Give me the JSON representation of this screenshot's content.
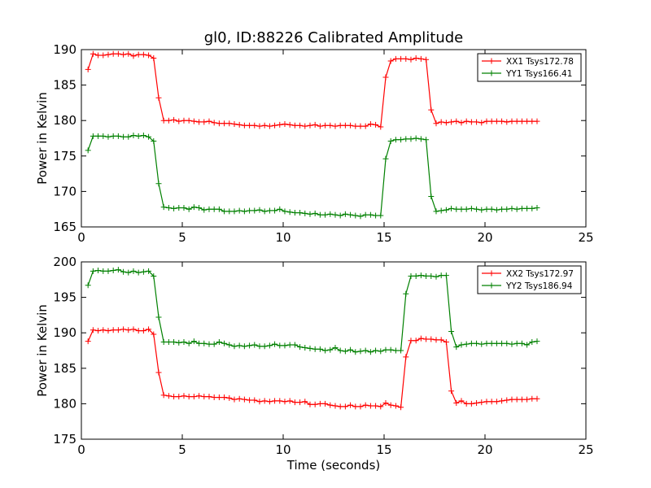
{
  "chart_data": {
    "title": "gl0, ID:88226 Calibrated Amplitude",
    "panels": [
      {
        "type": "line",
        "xlim": [
          0,
          25
        ],
        "ylim": [
          165,
          190
        ],
        "xticks": [
          0,
          5,
          10,
          15,
          20,
          25
        ],
        "yticks": [
          165,
          170,
          175,
          180,
          185,
          190
        ],
        "ylabel": "Power in Kelvin",
        "xlabel": "",
        "legend": "top-right",
        "series": [
          {
            "name": "XX1 Tsys172.78",
            "color": "#ff0000",
            "x": [
              0.33,
              0.58,
              0.83,
              1.08,
              1.33,
              1.58,
              1.83,
              2.08,
              2.33,
              2.58,
              2.83,
              3.08,
              3.33,
              3.58,
              3.83,
              4.08,
              4.33,
              4.58,
              4.83,
              5.08,
              5.33,
              5.58,
              5.83,
              6.08,
              6.33,
              6.58,
              6.83,
              7.08,
              7.33,
              7.58,
              7.83,
              8.08,
              8.33,
              8.58,
              8.83,
              9.08,
              9.33,
              9.58,
              9.83,
              10.08,
              10.33,
              10.58,
              10.83,
              11.08,
              11.33,
              11.58,
              11.83,
              12.08,
              12.33,
              12.58,
              12.83,
              13.08,
              13.33,
              13.58,
              13.83,
              14.08,
              14.33,
              14.58,
              14.83,
              15.08,
              15.33,
              15.58,
              15.83,
              16.08,
              16.33,
              16.58,
              16.83,
              17.08,
              17.33,
              17.58,
              17.83,
              18.08,
              18.33,
              18.58,
              18.83,
              19.08,
              19.33,
              19.58,
              19.83,
              20.08,
              20.33,
              20.58,
              20.83,
              21.08,
              21.33,
              21.58,
              21.83,
              22.08,
              22.33,
              22.58
            ],
            "y": [
              187.2,
              189.4,
              189.2,
              189.2,
              189.3,
              189.4,
              189.4,
              189.3,
              189.4,
              189.1,
              189.3,
              189.3,
              189.2,
              188.8,
              183.2,
              180.0,
              180.0,
              180.1,
              179.9,
              180.0,
              180.0,
              179.9,
              179.8,
              179.8,
              179.9,
              179.7,
              179.6,
              179.6,
              179.6,
              179.5,
              179.4,
              179.3,
              179.3,
              179.3,
              179.2,
              179.3,
              179.2,
              179.3,
              179.4,
              179.5,
              179.4,
              179.3,
              179.3,
              179.2,
              179.3,
              179.4,
              179.2,
              179.3,
              179.3,
              179.2,
              179.3,
              179.3,
              179.3,
              179.2,
              179.2,
              179.2,
              179.5,
              179.4,
              179.1,
              186.1,
              188.4,
              188.7,
              188.7,
              188.7,
              188.6,
              188.8,
              188.7,
              188.6,
              181.5,
              179.6,
              179.8,
              179.7,
              179.8,
              179.9,
              179.7,
              179.9,
              179.8,
              179.8,
              179.7,
              179.9,
              179.9,
              179.9,
              179.9,
              179.8,
              179.9,
              179.9,
              179.9,
              179.9,
              179.9,
              179.9
            ]
          },
          {
            "name": "YY1 Tsys166.41",
            "color": "#008000",
            "x": [
              0.33,
              0.58,
              0.83,
              1.08,
              1.33,
              1.58,
              1.83,
              2.08,
              2.33,
              2.58,
              2.83,
              3.08,
              3.33,
              3.58,
              3.83,
              4.08,
              4.33,
              4.58,
              4.83,
              5.08,
              5.33,
              5.58,
              5.83,
              6.08,
              6.33,
              6.58,
              6.83,
              7.08,
              7.33,
              7.58,
              7.83,
              8.08,
              8.33,
              8.58,
              8.83,
              9.08,
              9.33,
              9.58,
              9.83,
              10.08,
              10.33,
              10.58,
              10.83,
              11.08,
              11.33,
              11.58,
              11.83,
              12.08,
              12.33,
              12.58,
              12.83,
              13.08,
              13.33,
              13.58,
              13.83,
              14.08,
              14.33,
              14.58,
              14.83,
              15.08,
              15.33,
              15.58,
              15.83,
              16.08,
              16.33,
              16.58,
              16.83,
              17.08,
              17.33,
              17.58,
              17.83,
              18.08,
              18.33,
              18.58,
              18.83,
              19.08,
              19.33,
              19.58,
              19.83,
              20.08,
              20.33,
              20.58,
              20.83,
              21.08,
              21.33,
              21.58,
              21.83,
              22.08,
              22.33,
              22.58
            ],
            "y": [
              175.8,
              177.8,
              177.8,
              177.8,
              177.7,
              177.8,
              177.8,
              177.7,
              177.7,
              177.9,
              177.8,
              177.9,
              177.7,
              177.1,
              171.1,
              167.8,
              167.7,
              167.6,
              167.7,
              167.7,
              167.5,
              167.8,
              167.7,
              167.4,
              167.5,
              167.5,
              167.5,
              167.2,
              167.2,
              167.2,
              167.3,
              167.2,
              167.3,
              167.3,
              167.4,
              167.2,
              167.3,
              167.3,
              167.5,
              167.2,
              167.1,
              167.0,
              167.0,
              166.9,
              166.8,
              166.9,
              166.7,
              166.7,
              166.8,
              166.7,
              166.6,
              166.8,
              166.7,
              166.6,
              166.5,
              166.7,
              166.7,
              166.6,
              166.6,
              174.6,
              177.1,
              177.3,
              177.3,
              177.4,
              177.4,
              177.5,
              177.4,
              177.3,
              169.3,
              167.2,
              167.3,
              167.4,
              167.6,
              167.5,
              167.5,
              167.5,
              167.6,
              167.5,
              167.4,
              167.5,
              167.5,
              167.4,
              167.5,
              167.5,
              167.6,
              167.5,
              167.6,
              167.6,
              167.6,
              167.7
            ]
          }
        ]
      },
      {
        "type": "line",
        "xlim": [
          0,
          25
        ],
        "ylim": [
          175,
          200
        ],
        "xticks": [
          0,
          5,
          10,
          15,
          20,
          25
        ],
        "yticks": [
          175,
          180,
          185,
          190,
          195,
          200
        ],
        "ylabel": "Power in Kelvin",
        "xlabel": "Time (seconds)",
        "legend": "top-right",
        "series": [
          {
            "name": "XX2 Tsys172.97",
            "color": "#ff0000",
            "x": [
              0.33,
              0.58,
              0.83,
              1.08,
              1.33,
              1.58,
              1.83,
              2.08,
              2.33,
              2.58,
              2.83,
              3.08,
              3.33,
              3.58,
              3.83,
              4.08,
              4.33,
              4.58,
              4.83,
              5.08,
              5.33,
              5.58,
              5.83,
              6.08,
              6.33,
              6.58,
              6.83,
              7.08,
              7.33,
              7.58,
              7.83,
              8.08,
              8.33,
              8.58,
              8.83,
              9.08,
              9.33,
              9.58,
              9.83,
              10.08,
              10.33,
              10.58,
              10.83,
              11.08,
              11.33,
              11.58,
              11.83,
              12.08,
              12.33,
              12.58,
              12.83,
              13.08,
              13.33,
              13.58,
              13.83,
              14.08,
              14.33,
              14.58,
              14.83,
              15.08,
              15.33,
              15.58,
              15.83,
              16.08,
              16.33,
              16.58,
              16.83,
              17.08,
              17.33,
              17.58,
              17.83,
              18.08,
              18.33,
              18.58,
              18.83,
              19.08,
              19.33,
              19.58,
              19.83,
              20.08,
              20.33,
              20.58,
              20.83,
              21.08,
              21.33,
              21.58,
              21.83,
              22.08,
              22.33,
              22.58
            ],
            "y": [
              188.8,
              190.4,
              190.3,
              190.4,
              190.3,
              190.4,
              190.4,
              190.5,
              190.4,
              190.5,
              190.3,
              190.3,
              190.5,
              189.8,
              184.4,
              181.2,
              181.1,
              181.0,
              181.0,
              181.1,
              181.0,
              181.0,
              181.1,
              181.0,
              181.0,
              180.9,
              180.9,
              180.9,
              180.8,
              180.6,
              180.7,
              180.6,
              180.5,
              180.5,
              180.3,
              180.4,
              180.3,
              180.4,
              180.4,
              180.3,
              180.4,
              180.2,
              180.2,
              180.3,
              179.9,
              179.9,
              180.0,
              180.0,
              179.8,
              179.7,
              179.6,
              179.6,
              179.8,
              179.6,
              179.6,
              179.8,
              179.7,
              179.7,
              179.6,
              180.1,
              179.8,
              179.7,
              179.5,
              186.6,
              188.9,
              188.9,
              189.2,
              189.1,
              189.1,
              189.0,
              189.0,
              188.7,
              181.8,
              180.1,
              180.4,
              180.0,
              180.0,
              180.1,
              180.2,
              180.3,
              180.3,
              180.3,
              180.4,
              180.5,
              180.6,
              180.6,
              180.6,
              180.6,
              180.7,
              180.7
            ]
          },
          {
            "name": "YY2 Tsys186.94",
            "color": "#008000",
            "x": [
              0.33,
              0.58,
              0.83,
              1.08,
              1.33,
              1.58,
              1.83,
              2.08,
              2.33,
              2.58,
              2.83,
              3.08,
              3.33,
              3.58,
              3.83,
              4.08,
              4.33,
              4.58,
              4.83,
              5.08,
              5.33,
              5.58,
              5.83,
              6.08,
              6.33,
              6.58,
              6.83,
              7.08,
              7.33,
              7.58,
              7.83,
              8.08,
              8.33,
              8.58,
              8.83,
              9.08,
              9.33,
              9.58,
              9.83,
              10.08,
              10.33,
              10.58,
              10.83,
              11.08,
              11.33,
              11.58,
              11.83,
              12.08,
              12.33,
              12.58,
              12.83,
              13.08,
              13.33,
              13.58,
              13.83,
              14.08,
              14.33,
              14.58,
              14.83,
              15.08,
              15.33,
              15.58,
              15.83,
              16.08,
              16.33,
              16.58,
              16.83,
              17.08,
              17.33,
              17.58,
              17.83,
              18.08,
              18.33,
              18.58,
              18.83,
              19.08,
              19.33,
              19.58,
              19.83,
              20.08,
              20.33,
              20.58,
              20.83,
              21.08,
              21.33,
              21.58,
              21.83,
              22.08,
              22.33,
              22.58
            ],
            "y": [
              196.7,
              198.7,
              198.8,
              198.7,
              198.7,
              198.8,
              198.9,
              198.6,
              198.5,
              198.7,
              198.5,
              198.6,
              198.7,
              198.0,
              192.2,
              188.7,
              188.7,
              188.7,
              188.6,
              188.7,
              188.5,
              188.8,
              188.5,
              188.5,
              188.4,
              188.4,
              188.7,
              188.5,
              188.3,
              188.1,
              188.2,
              188.1,
              188.2,
              188.3,
              188.1,
              188.1,
              188.2,
              188.4,
              188.2,
              188.2,
              188.3,
              188.3,
              188.0,
              187.9,
              187.8,
              187.7,
              187.7,
              187.5,
              187.6,
              187.9,
              187.5,
              187.4,
              187.6,
              187.3,
              187.4,
              187.5,
              187.3,
              187.5,
              187.4,
              187.6,
              187.6,
              187.5,
              187.5,
              195.5,
              198.0,
              198.0,
              198.1,
              198.0,
              198.0,
              197.9,
              198.1,
              198.1,
              190.2,
              188.0,
              188.3,
              188.4,
              188.5,
              188.5,
              188.4,
              188.5,
              188.5,
              188.5,
              188.5,
              188.5,
              188.4,
              188.5,
              188.5,
              188.3,
              188.7,
              188.8
            ]
          }
        ]
      }
    ]
  }
}
